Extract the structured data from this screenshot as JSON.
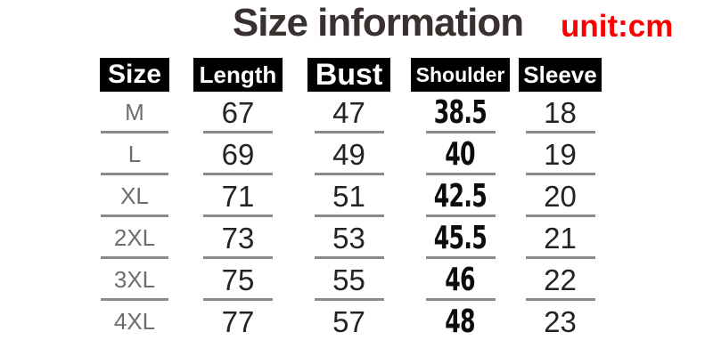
{
  "header": {
    "title": "Size information",
    "unit_label": "unit:cm"
  },
  "colors": {
    "title": "#38312f",
    "unit": "#fb0000",
    "header_bg": "#000000",
    "header_text": "#ffffff",
    "value_text": "#232323",
    "shoulder_value_text": "#0c0c0c",
    "size_label_text": "#6e6e6e",
    "rule_line": "#8a8a8a",
    "background": "#ffffff"
  },
  "table": {
    "columns": [
      {
        "key": "size",
        "label": "Size"
      },
      {
        "key": "length",
        "label": "Length"
      },
      {
        "key": "bust",
        "label": "Bust"
      },
      {
        "key": "shoulder",
        "label": "Shoulder"
      },
      {
        "key": "sleeve",
        "label": "Sleeve"
      }
    ],
    "rows": [
      {
        "size": "M",
        "length": "67",
        "bust": "47",
        "shoulder": "38.5",
        "sleeve": "18"
      },
      {
        "size": "L",
        "length": "69",
        "bust": "49",
        "shoulder": "40",
        "sleeve": "19"
      },
      {
        "size": "XL",
        "length": "71",
        "bust": "51",
        "shoulder": "42.5",
        "sleeve": "20"
      },
      {
        "size": "2XL",
        "length": "73",
        "bust": "53",
        "shoulder": "45.5",
        "sleeve": "21"
      },
      {
        "size": "3XL",
        "length": "75",
        "bust": "55",
        "shoulder": "46",
        "sleeve": "22"
      },
      {
        "size": "4XL",
        "length": "77",
        "bust": "57",
        "shoulder": "48",
        "sleeve": "23"
      }
    ]
  },
  "chart_data": {
    "type": "table",
    "title": "Size information",
    "unit": "cm",
    "columns": [
      "Size",
      "Length",
      "Bust",
      "Shoulder",
      "Sleeve"
    ],
    "rows": [
      [
        "M",
        67,
        47,
        38.5,
        18
      ],
      [
        "L",
        69,
        49,
        40,
        19
      ],
      [
        "XL",
        71,
        51,
        42.5,
        20
      ],
      [
        "2XL",
        73,
        53,
        45.5,
        21
      ],
      [
        "3XL",
        75,
        55,
        46,
        22
      ],
      [
        "4XL",
        77,
        57,
        48,
        23
      ]
    ]
  }
}
